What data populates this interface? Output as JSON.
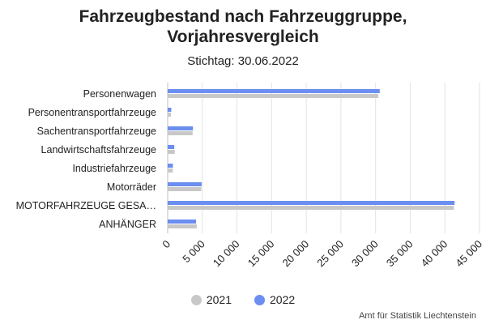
{
  "chart_data": {
    "type": "bar",
    "orientation": "horizontal",
    "title": "Fahrzeugbestand nach Fahrzeuggruppe, Vorjahresvergleich",
    "title_lines": [
      "Fahrzeugbestand nach Fahrzeuggruppe,",
      "Vorjahresvergleich"
    ],
    "subtitle": "Stichtag: 30.06.2022",
    "categories": [
      "Personenwagen",
      "Personentransportfahrzeuge",
      "Sachentransportfahrzeuge",
      "Landwirtschaftsfahrzeuge",
      "Industriefahrzeuge",
      "Motorräder",
      "MOTORFAHRZEUGE GESA…",
      "ANHÄNGER"
    ],
    "series": [
      {
        "name": "2022",
        "color": "#6b8ef0",
        "values": [
          30600,
          520,
          3650,
          950,
          760,
          4900,
          41400,
          4100
        ]
      },
      {
        "name": "2021",
        "color": "#c8c8c8",
        "values": [
          30400,
          480,
          3600,
          1000,
          750,
          4850,
          41300,
          4200
        ]
      }
    ],
    "xlim": [
      0,
      45000
    ],
    "xticks": [
      0,
      5000,
      10000,
      15000,
      20000,
      25000,
      30000,
      35000,
      40000,
      45000
    ],
    "xtick_labels": [
      "0",
      "5 000",
      "10 000",
      "15 000",
      "20 000",
      "25 000",
      "30 000",
      "35 000",
      "40 000",
      "45 000"
    ],
    "grid": "vertical",
    "legend": [
      {
        "name": "2021",
        "color": "#c8c8c8"
      },
      {
        "name": "2022",
        "color": "#6b8ef0"
      }
    ],
    "legend_position": "bottom",
    "credit": "Amt für Statistik Liechtenstein"
  }
}
